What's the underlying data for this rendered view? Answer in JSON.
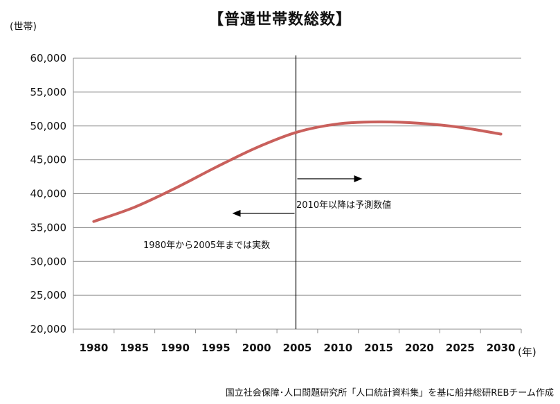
{
  "chart_data": {
    "type": "line",
    "title": "【普通世帯数総数】",
    "ylabel": "(世帯)",
    "xlabel": "(年)",
    "categories": [
      "1980",
      "1985",
      "1990",
      "1995",
      "2000",
      "2005",
      "2010",
      "2015",
      "2020",
      "2025",
      "2030"
    ],
    "series": [
      {
        "values": [
          35900,
          38000,
          40800,
          43900,
          46800,
          49100,
          50300,
          50600,
          50400,
          49800,
          48800
        ]
      }
    ],
    "ylim": [
      20000,
      60000
    ],
    "yticks": [
      "20,000",
      "25,000",
      "30,000",
      "35,000",
      "40,000",
      "45,000",
      "50,000",
      "55,000",
      "60,000"
    ],
    "grid": true,
    "divider_year": "2005",
    "annotations": [
      {
        "text": "2010年以降は予測数値",
        "arrow": "right"
      },
      {
        "text": "1980年から2005年までは実数",
        "arrow": "left"
      }
    ],
    "line_color": "#c9605c"
  },
  "source": "国立社会保障･人口問題研究所「人口統計資料集」を基に船井総研REBチーム作成"
}
